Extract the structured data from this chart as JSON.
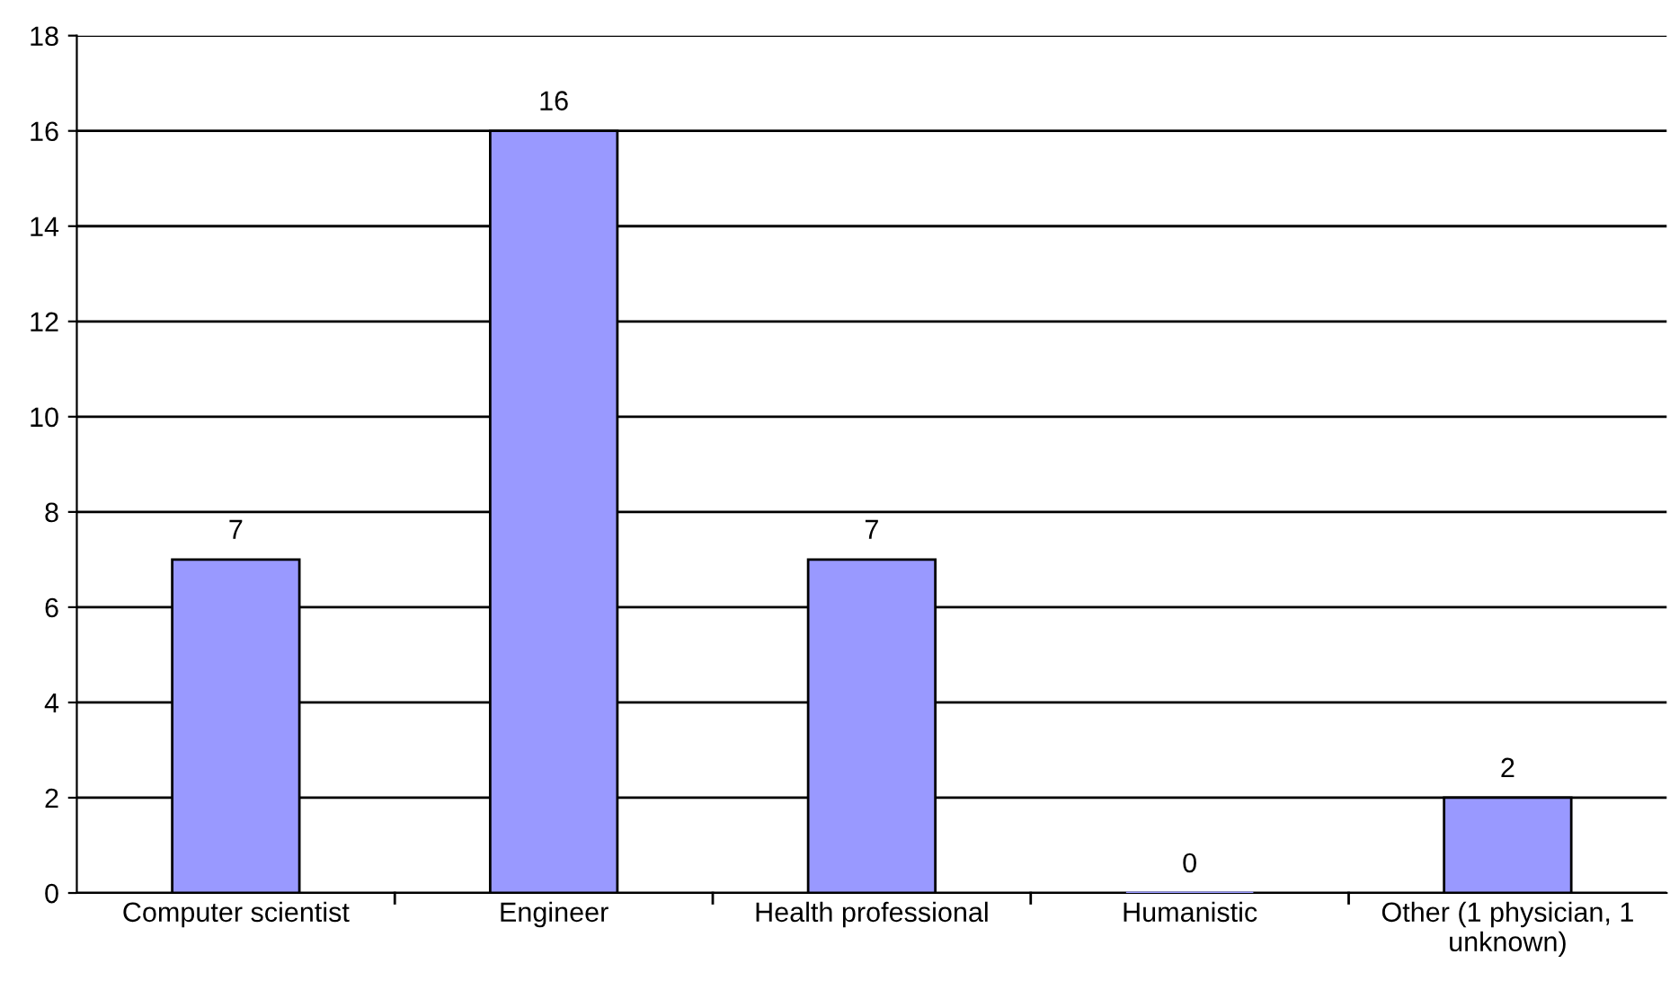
{
  "chart_data": {
    "type": "bar",
    "categories": [
      "Computer scientist",
      "Engineer",
      "Health professional",
      "Humanistic",
      "Other (1 physician, 1 unknown)"
    ],
    "values": [
      7,
      16,
      7,
      0,
      2
    ],
    "color": "#9999ff",
    "ylim": [
      0,
      18
    ],
    "yticks": [
      0,
      2,
      4,
      6,
      8,
      10,
      12,
      14,
      16,
      18
    ],
    "grid": "y",
    "data_labels": true
  }
}
